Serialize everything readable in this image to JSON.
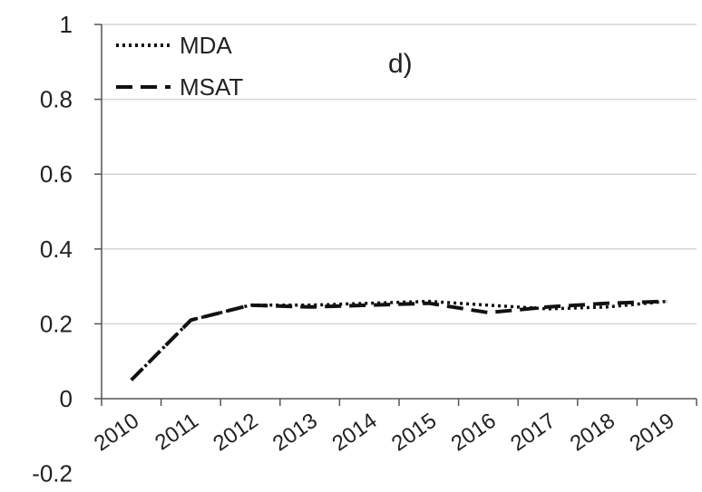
{
  "chart_data": {
    "type": "line",
    "panel_label": "d)",
    "x": [
      2010,
      2011,
      2012,
      2013,
      2014,
      2015,
      2016,
      2017,
      2018,
      2019
    ],
    "xtick_labels": [
      "2010",
      "2011",
      "2012",
      "2013",
      "2014",
      "2015",
      "2016",
      "2017",
      "2018",
      "2019"
    ],
    "ytick_labels": [
      "-0.2",
      "0",
      "0.2",
      "0.4",
      "0.6",
      "0.8",
      "1"
    ],
    "yticks": [
      -0.2,
      0,
      0.2,
      0.4,
      0.6,
      0.8,
      1
    ],
    "ylim": [
      -0.2,
      1
    ],
    "grid": "horizontal",
    "legend": "top-left",
    "series": [
      {
        "name": "MDA",
        "style": "dotted",
        "values": [
          0.05,
          0.21,
          0.25,
          0.25,
          0.255,
          0.26,
          0.25,
          0.24,
          0.245,
          0.26
        ]
      },
      {
        "name": "MSAT",
        "style": "dashed",
        "values": [
          0.05,
          0.21,
          0.25,
          0.245,
          0.25,
          0.255,
          0.23,
          0.245,
          0.255,
          0.26
        ]
      }
    ]
  }
}
